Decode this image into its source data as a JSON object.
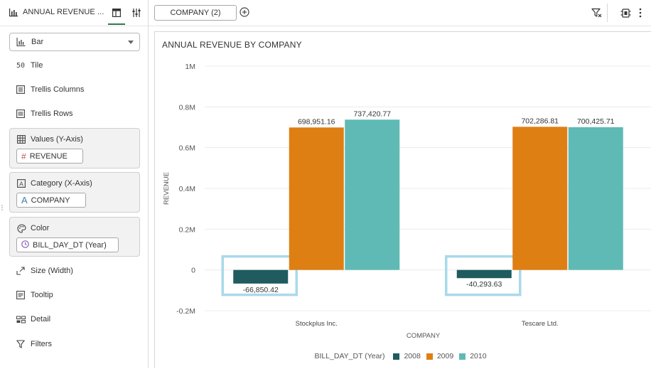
{
  "panel": {
    "title": "ANNUAL REVENUE ...",
    "chart_type": "Bar",
    "properties": {
      "tile": "Tile",
      "trellis_columns": "Trellis Columns",
      "trellis_rows": "Trellis Rows",
      "size": "Size (Width)",
      "tooltip": "Tooltip",
      "detail": "Detail",
      "filters": "Filters"
    },
    "wells": {
      "values": {
        "title": "Values (Y-Axis)",
        "pill_icon": "#",
        "pill": "REVENUE"
      },
      "category": {
        "title": "Category (X-Axis)",
        "pill_icon": "A",
        "pill": "COMPANY"
      },
      "color": {
        "title": "Color",
        "pill": "BILL_DAY_DT (Year)"
      }
    }
  },
  "topbar": {
    "filter_pill": "COMPANY (2)"
  },
  "colors": {
    "accent": "#2b7a4b",
    "series_2008": "#1f5b5f",
    "series_2009": "#de7f13",
    "series_2010": "#5fbab5",
    "highlight": "#a9d9ea"
  },
  "chart_data": {
    "type": "bar",
    "title": "ANNUAL REVENUE BY COMPANY",
    "xlabel": "COMPANY",
    "ylabel": "REVENUE",
    "ylim": [
      -200000,
      1000000
    ],
    "yticks": [
      {
        "value": 1000000,
        "label": "1M"
      },
      {
        "value": 800000,
        "label": "0.8M"
      },
      {
        "value": 600000,
        "label": "0.6M"
      },
      {
        "value": 400000,
        "label": "0.4M"
      },
      {
        "value": 200000,
        "label": "0.2M"
      },
      {
        "value": 0,
        "label": "0"
      },
      {
        "value": -200000,
        "label": "-0.2M"
      }
    ],
    "categories": [
      "Stockplus Inc.",
      "Tescare Ltd."
    ],
    "series": [
      {
        "name": "2008",
        "color": "#1f5b5f",
        "values": [
          -66850.42,
          -40293.63
        ],
        "labels": [
          "-66,850.42",
          "-40,293.63"
        ]
      },
      {
        "name": "2009",
        "color": "#de7f13",
        "values": [
          698951.16,
          702286.81
        ],
        "labels": [
          "698,951.16",
          "702,286.81"
        ]
      },
      {
        "name": "2010",
        "color": "#5fbab5",
        "values": [
          737420.77,
          700425.71
        ],
        "labels": [
          "737,420.77",
          "700,425.71"
        ]
      }
    ],
    "legend": {
      "title": "BILL_DAY_DT (Year)",
      "placement": "bottom"
    },
    "highlighted_series": "2008",
    "grid": true
  }
}
